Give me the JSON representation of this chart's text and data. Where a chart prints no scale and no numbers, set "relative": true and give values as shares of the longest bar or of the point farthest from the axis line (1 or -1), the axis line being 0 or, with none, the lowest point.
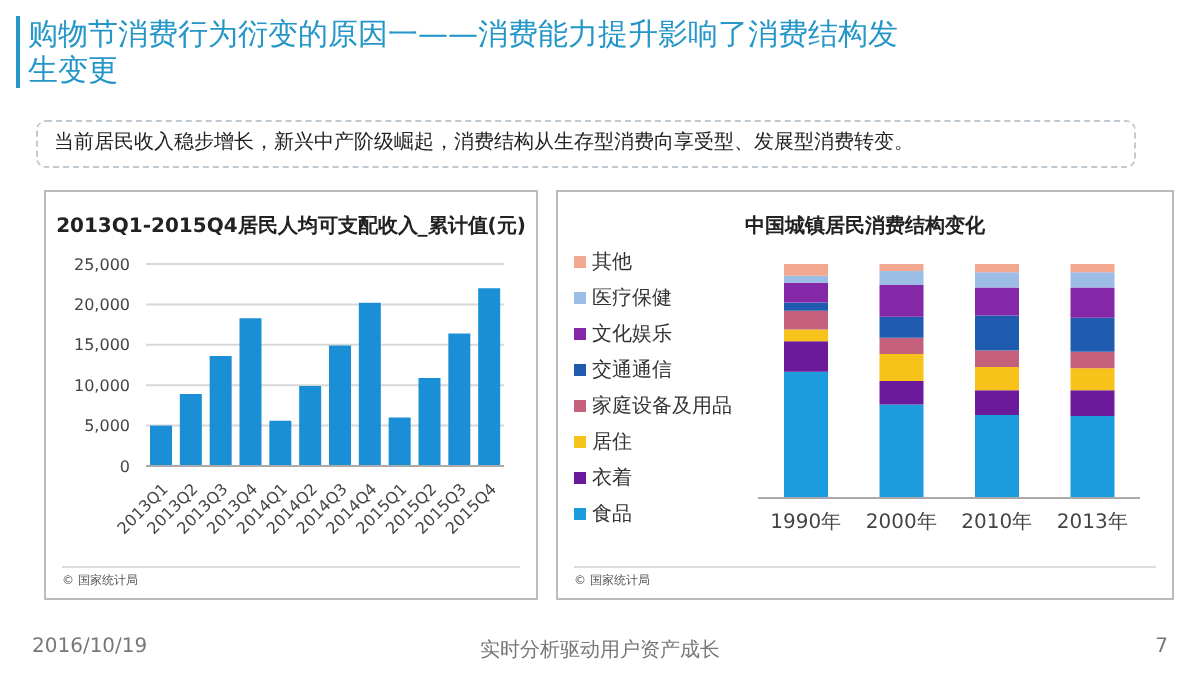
{
  "chart_data": [
    {
      "type": "other",
      "title": "购物节消费行为衍变的原因一——消费能力提升影响了消费结构发生变更",
      "subtitle": "当前居民收入稳步增长，新兴中产阶级崛起，消费结构从生存型消费向享受型、发展型消费转变。",
      "annotations": [
        "2016/10/19",
        "实时分析驱动用户资产成长",
        "7"
      ]
    },
    {
      "type": "bar",
      "title": "2013Q1-2015Q4居民人均可支配收入_累计值(元)",
      "categories": [
        "2013Q1",
        "2013Q2",
        "2013Q3",
        "2013Q4",
        "2014Q1",
        "2014Q2",
        "2014Q3",
        "2014Q4",
        "2015Q1",
        "2015Q2",
        "2015Q3",
        "2015Q4"
      ],
      "values": [
        5000,
        8900,
        13600,
        18300,
        5600,
        9900,
        14900,
        20200,
        6000,
        10900,
        16400,
        22000
      ],
      "color": "#1a8fd6",
      "ylim": [
        0,
        25000
      ],
      "yticks": [
        0,
        {
          "value": 5000,
          "label": "5,000"
        },
        {
          "value": 10000,
          "label": "10,000"
        },
        {
          "value": 15000,
          "label": "15,000"
        },
        {
          "value": 20000,
          "label": "20,000"
        },
        {
          "value": 25000,
          "label": "25,000"
        }
      ],
      "grid": "y",
      "annotations": [
        "© 国家统计局"
      ]
    },
    {
      "type": "bar",
      "title": "中国城镇居民消费结构变化",
      "categories": [
        "1990年",
        "2000年",
        "2010年",
        "2013年"
      ],
      "stacked": true,
      "relative": true,
      "legend": "left",
      "annotations": [
        "© 国家统计局"
      ],
      "series": [
        {
          "name": "食品",
          "color": "#1c9cdc",
          "values": [
            0.54,
            0.4,
            0.355,
            0.35
          ]
        },
        {
          "name": "衣着",
          "color": "#6a1a9a",
          "values": [
            0.13,
            0.1,
            0.105,
            0.11
          ]
        },
        {
          "name": "居住",
          "color": "#f7c21a",
          "values": [
            0.05,
            0.115,
            0.1,
            0.095
          ]
        },
        {
          "name": "家庭设备及用品",
          "color": "#c5607c",
          "values": [
            0.08,
            0.07,
            0.07,
            0.07
          ]
        },
        {
          "name": "交通通信",
          "color": "#1f5cb0",
          "values": [
            0.035,
            0.09,
            0.15,
            0.145
          ]
        },
        {
          "name": "文化娱乐",
          "color": "#8428a8",
          "values": [
            0.085,
            0.135,
            0.12,
            0.13
          ]
        },
        {
          "name": "医疗保健",
          "color": "#9bbde6",
          "values": [
            0.03,
            0.06,
            0.065,
            0.065
          ]
        },
        {
          "name": "其他",
          "color": "#f2a88e",
          "values": [
            0.05,
            0.03,
            0.035,
            0.035
          ]
        }
      ]
    }
  ]
}
